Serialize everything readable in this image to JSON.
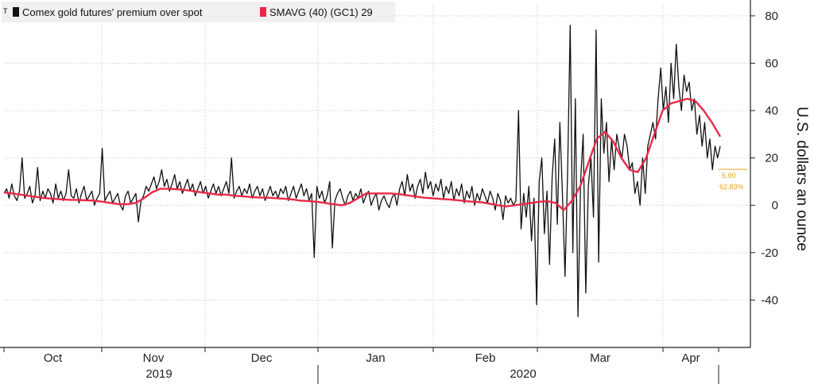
{
  "chart_data": {
    "type": "line",
    "title": "",
    "xlabel": "",
    "ylabel": "U.S. dollars an ounce",
    "ylim": [
      -60,
      85
    ],
    "y_ticks": [
      80,
      60,
      40,
      20,
      0,
      -20,
      -40
    ],
    "y_tick_labels": [
      "80",
      "60",
      "40",
      "20",
      "0",
      "-20",
      "-40"
    ],
    "grid": true,
    "legend_position": "top-left",
    "x_month_labels": [
      "Oct",
      "Nov",
      "Dec",
      "Jan",
      "Feb",
      "Mar",
      "Apr"
    ],
    "x_year_labels": [
      "2019",
      "2020"
    ],
    "series": [
      {
        "name": "Comex gold futures' premium over spot",
        "color": "#111111",
        "style": "high-frequency",
        "values": [
          5,
          7,
          3,
          9,
          4,
          2,
          6,
          20,
          3,
          5,
          8,
          1,
          4,
          16,
          2,
          6,
          3,
          7,
          5,
          1,
          9,
          3,
          6,
          2,
          5,
          15,
          4,
          3,
          7,
          1,
          5,
          8,
          2,
          4,
          6,
          0,
          3,
          5,
          24,
          2,
          4,
          6,
          1,
          3,
          5,
          0,
          -2,
          4,
          6,
          1,
          3,
          5,
          -7,
          2,
          4,
          8,
          6,
          9,
          12,
          7,
          10,
          15,
          8,
          11,
          6,
          9,
          13,
          7,
          10,
          5,
          8,
          11,
          6,
          9,
          4,
          7,
          10,
          5,
          8,
          3,
          6,
          9,
          5,
          8,
          4,
          7,
          10,
          5,
          20,
          3,
          6,
          8,
          4,
          7,
          5,
          9,
          3,
          6,
          8,
          4,
          7,
          2,
          5,
          8,
          4,
          6,
          3,
          7,
          5,
          8,
          2,
          5,
          8,
          3,
          6,
          9,
          4,
          7,
          2,
          5,
          -22,
          8,
          3,
          6,
          1,
          4,
          10,
          -18,
          2,
          5,
          7,
          3,
          0,
          4,
          6,
          2,
          5,
          3,
          7,
          1,
          4,
          6,
          0,
          3,
          5,
          -2,
          2,
          4,
          1,
          -1,
          3,
          5,
          0,
          7,
          10,
          4,
          13,
          6,
          9,
          3,
          8,
          11,
          5,
          14,
          7,
          10,
          4,
          9,
          6,
          11,
          3,
          8,
          5,
          10,
          2,
          7,
          4,
          9,
          1,
          6,
          3,
          8,
          0,
          5,
          2,
          7,
          4,
          1,
          6,
          3,
          -2,
          5,
          2,
          -6,
          4,
          1,
          3,
          0,
          2,
          40,
          -10,
          5,
          -5,
          8,
          -15,
          3,
          -42,
          10,
          20,
          -12,
          6,
          -25,
          12,
          28,
          -8,
          35,
          4,
          -30,
          15,
          76,
          -20,
          45,
          -47,
          10,
          30,
          -37,
          8,
          20,
          -5,
          74,
          -24,
          45,
          22,
          35,
          10,
          28,
          15,
          30,
          24,
          20,
          30,
          25,
          15,
          18,
          5,
          10,
          0,
          20,
          5,
          25,
          30,
          35,
          28,
          45,
          58,
          40,
          50,
          35,
          60,
          45,
          68,
          50,
          40,
          55,
          48,
          52,
          40,
          45,
          30,
          38,
          25,
          35,
          20,
          28,
          15,
          25,
          20,
          25
        ]
      },
      {
        "name": "SMAVG (40) (GC1) 29",
        "color": "#e8294a",
        "style": "smooth",
        "values": [
          5.5,
          5,
          4.5,
          4,
          3.5,
          3,
          2.8,
          2.5,
          2.3,
          2.3,
          2.1,
          2,
          1.5,
          1,
          0.5,
          0.5,
          1,
          3,
          5.5,
          7,
          7,
          6.8,
          6.5,
          6,
          5.5,
          5,
          4.5,
          4.5,
          4,
          3.8,
          3.5,
          3.3,
          3.2,
          3,
          2.8,
          2.5,
          2,
          1.8,
          1.5,
          1,
          0.5,
          0,
          1,
          3,
          5,
          5,
          5,
          5,
          4.7,
          4.2,
          3.7,
          3.2,
          3,
          2.7,
          2.5,
          2.2,
          1.8,
          1.5,
          1.3,
          0.7,
          0,
          -0.5,
          0,
          0.5,
          1,
          1.5,
          1.8,
          1,
          -2,
          2,
          8,
          18,
          28,
          31,
          27,
          20,
          15,
          14,
          20,
          30,
          40,
          43,
          44,
          45,
          44,
          40,
          35,
          29
        ]
      }
    ],
    "callout_value": "5.90",
    "callout_percent": "62.83%"
  }
}
